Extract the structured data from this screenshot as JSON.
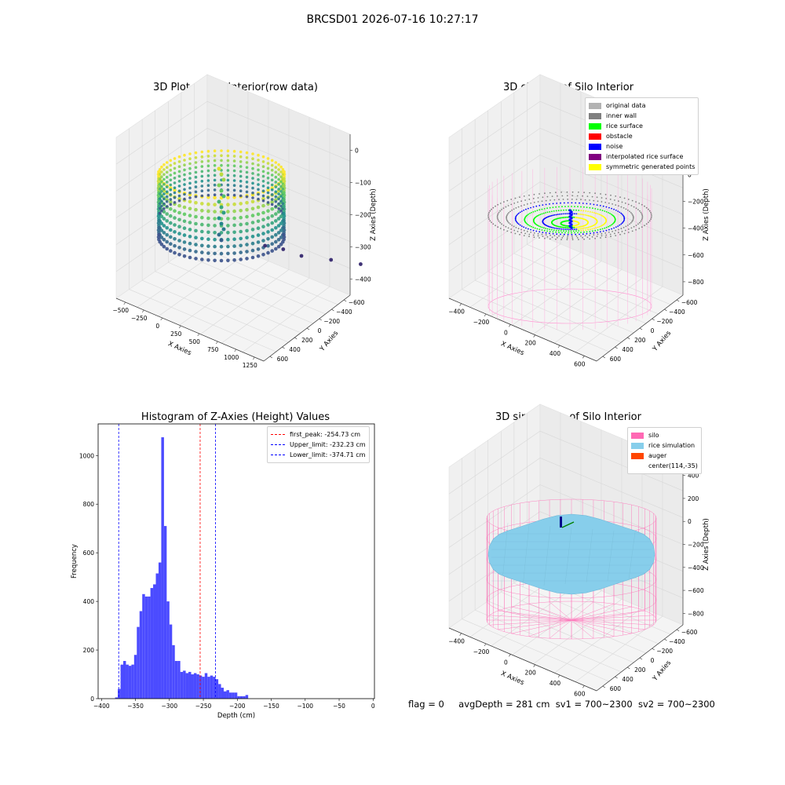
{
  "suptitle": "BRCSD01 2026-07-16 10:27:17",
  "colors": {
    "viridis": [
      "#440154",
      "#3b528b",
      "#21918c",
      "#5ec962",
      "#fde725"
    ],
    "pane": "#f2f2f2",
    "silo": "#ff69b4",
    "rice": "#87ceeb",
    "auger": "#ff4500",
    "hist_bar": "#4b4bff"
  },
  "chart_data": [
    {
      "id": "raw",
      "type": "scatter",
      "title": "3D Plot of Silo Interior(row data)",
      "xlabel": "X Axies",
      "ylabel": "Y Axies",
      "zlabel": "Z Axies (Depth)",
      "xticks": [
        "−500",
        "−250",
        "0",
        "250",
        "500",
        "750",
        "1000",
        "1250"
      ],
      "yticks": [
        "−600",
        "−400",
        "−200",
        "0",
        "200",
        "400",
        "600"
      ],
      "zticks": [
        "0",
        "−100",
        "−200",
        "−300",
        "−400"
      ],
      "outliers": [
        [
          540,
          -40,
          -480
        ],
        [
          620,
          -60,
          -510
        ],
        [
          700,
          -90,
          -560
        ],
        [
          830,
          -120,
          -600
        ],
        [
          960,
          -160,
          -650
        ]
      ]
    },
    {
      "id": "classify",
      "type": "scatter",
      "title": "3D classify of Silo Interior",
      "xlabel": "X Axies",
      "ylabel": "Y Axies",
      "zlabel": "Z Axies (Depth)",
      "xticks": [
        "−400",
        "−200",
        "0",
        "200",
        "400",
        "600"
      ],
      "yticks": [
        "−600",
        "−400",
        "−200",
        "0",
        "200",
        "400",
        "600"
      ],
      "zticks": [
        "200",
        "0",
        "−200",
        "−400",
        "−600",
        "−800"
      ],
      "legend": [
        {
          "label": "original data",
          "color": "#b3b3b3"
        },
        {
          "label": "inner wall",
          "color": "#808080"
        },
        {
          "label": "rice surface",
          "color": "#00ff00"
        },
        {
          "label": "obstacle",
          "color": "#ff0000"
        },
        {
          "label": "noise",
          "color": "#0000ff"
        },
        {
          "label": "interpolated rice surface",
          "color": "#800080"
        },
        {
          "label": "symmetric generated points",
          "color": "#ffff00"
        }
      ]
    },
    {
      "id": "hist",
      "type": "bar",
      "title": "Histogram of Z-Axies (Height) Values",
      "xlabel": "Depth (cm)",
      "ylabel": "Frequency",
      "xlim": [
        -405,
        2
      ],
      "ylim": [
        0,
        1130
      ],
      "xticks": [
        -400,
        -350,
        -300,
        -250,
        -200,
        -150,
        -100,
        -50,
        0
      ],
      "xtick_labels": [
        "−400",
        "−350",
        "−300",
        "−250",
        "−200",
        "−150",
        "−100",
        "−50",
        "0"
      ],
      "yticks": [
        0,
        200,
        400,
        600,
        800,
        1000
      ],
      "bin_start": -380,
      "bin_width": 4,
      "values": [
        5,
        40,
        140,
        155,
        140,
        135,
        140,
        180,
        295,
        360,
        430,
        420,
        420,
        455,
        470,
        515,
        560,
        1075,
        710,
        400,
        305,
        220,
        155,
        155,
        110,
        115,
        105,
        110,
        100,
        105,
        100,
        95,
        90,
        105,
        90,
        95,
        90,
        80,
        60,
        45,
        30,
        35,
        25,
        25,
        25,
        10,
        10,
        10,
        15
      ],
      "vlines": [
        {
          "label": "first_peak: -254.73 cm",
          "x": -254.73,
          "color": "#ff0000"
        },
        {
          "label": "Upper_limit: -232.23 cm",
          "x": -232.23,
          "color": "#0000ff"
        },
        {
          "label": "Lower_limit: -374.71 cm",
          "x": -374.71,
          "color": "#0000ff"
        }
      ]
    },
    {
      "id": "sim",
      "type": "surface",
      "title": "3D simulation of Silo Interior",
      "xlabel": "X Axies",
      "ylabel": "Y Axies",
      "zlabel": "Z Axies (Depth)",
      "xticks": [
        "−400",
        "−200",
        "0",
        "200",
        "400",
        "600"
      ],
      "yticks": [
        "−600",
        "−400",
        "−200",
        "0",
        "200",
        "400",
        "600"
      ],
      "zticks": [
        "400",
        "200",
        "0",
        "−200",
        "−400",
        "−600",
        "−800"
      ],
      "legend": [
        {
          "label": "silo",
          "color": "#ff69b4"
        },
        {
          "label": "rice simulation",
          "color": "#87ceeb"
        },
        {
          "label": "auger",
          "color": "#ff4500"
        },
        {
          "label": "center(114,-35)",
          "color": ""
        }
      ]
    }
  ],
  "status": {
    "flag": "flag = 0",
    "avgDepth": "avgDepth = 281 cm",
    "sv1": "sv1 = 700~2300",
    "sv2": "sv2 = 700~2300"
  }
}
